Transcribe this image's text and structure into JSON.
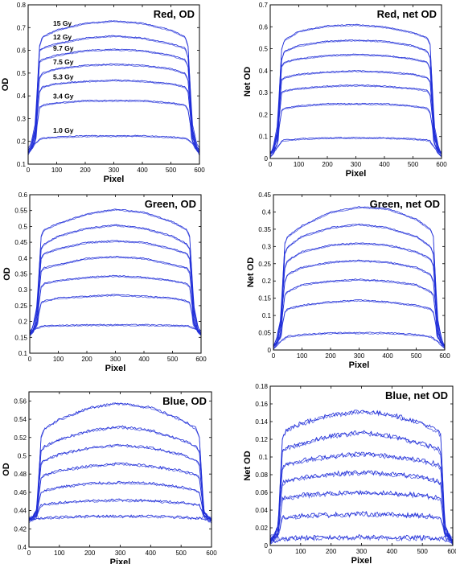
{
  "chart_data": [
    {
      "type": "line",
      "title": "Red, OD",
      "xlabel": "Pixel",
      "ylabel": "OD",
      "xlim": [
        0,
        600
      ],
      "ylim": [
        0.1,
        0.8
      ],
      "xticks": [
        0,
        100,
        200,
        300,
        400,
        500,
        600
      ],
      "yticks": [
        0.1,
        0.2,
        0.3,
        0.4,
        0.5,
        0.6,
        0.7,
        0.8
      ],
      "grid": false,
      "line_color": "#1f2dd8",
      "noise": 0.002,
      "dose_labels": [
        "15 Gy",
        "12 Gy",
        "9.7 Gy",
        "7.5 Gy",
        "5.3 Gy",
        "3.4 Gy",
        "1.0 Gy"
      ],
      "tail_values": [
        0.14,
        0.15,
        0.16,
        0.17,
        0.18,
        0.19,
        0.2
      ],
      "x": [
        0,
        10,
        25,
        40,
        50,
        100,
        200,
        300,
        400,
        500,
        550,
        560,
        575,
        590,
        600
      ],
      "series": [
        {
          "values": [
            0.17,
            0.19,
            0.28,
            0.62,
            0.66,
            0.69,
            0.72,
            0.73,
            0.72,
            0.69,
            0.66,
            0.62,
            0.28,
            0.19,
            0.17
          ]
        },
        {
          "values": [
            0.16,
            0.18,
            0.26,
            0.6,
            0.61,
            0.63,
            0.655,
            0.665,
            0.655,
            0.63,
            0.61,
            0.57,
            0.26,
            0.18,
            0.16
          ]
        },
        {
          "values": [
            0.16,
            0.18,
            0.25,
            0.55,
            0.56,
            0.58,
            0.6,
            0.605,
            0.6,
            0.58,
            0.56,
            0.53,
            0.25,
            0.18,
            0.16
          ]
        },
        {
          "values": [
            0.15,
            0.17,
            0.24,
            0.48,
            0.5,
            0.52,
            0.535,
            0.54,
            0.535,
            0.52,
            0.5,
            0.47,
            0.24,
            0.17,
            0.15
          ]
        },
        {
          "values": [
            0.15,
            0.17,
            0.23,
            0.42,
            0.44,
            0.455,
            0.465,
            0.47,
            0.465,
            0.455,
            0.44,
            0.42,
            0.23,
            0.17,
            0.15
          ]
        },
        {
          "values": [
            0.15,
            0.16,
            0.22,
            0.35,
            0.36,
            0.37,
            0.38,
            0.38,
            0.38,
            0.37,
            0.36,
            0.34,
            0.22,
            0.16,
            0.15
          ]
        },
        {
          "values": [
            0.14,
            0.16,
            0.19,
            0.21,
            0.215,
            0.22,
            0.225,
            0.225,
            0.225,
            0.22,
            0.215,
            0.21,
            0.19,
            0.16,
            0.14
          ]
        }
      ]
    },
    {
      "type": "line",
      "title": "Red, net OD",
      "xlabel": "Pixel",
      "ylabel": "Net OD",
      "xlim": [
        0,
        600
      ],
      "ylim": [
        0,
        0.7
      ],
      "xticks": [
        0,
        100,
        200,
        300,
        400,
        500,
        600
      ],
      "yticks": [
        0,
        0.1,
        0.2,
        0.3,
        0.4,
        0.5,
        0.6,
        0.7
      ],
      "grid": false,
      "line_color": "#1f2dd8",
      "noise": 0.002,
      "dose_labels": [],
      "tail_values": [
        0.0,
        0.01,
        0.02,
        0.03,
        0.04,
        0.05,
        0.06
      ],
      "x": [
        0,
        10,
        25,
        40,
        50,
        100,
        200,
        300,
        400,
        500,
        550,
        560,
        575,
        590,
        600
      ],
      "series": [
        {
          "values": [
            0.02,
            0.05,
            0.15,
            0.5,
            0.54,
            0.58,
            0.605,
            0.61,
            0.6,
            0.575,
            0.55,
            0.52,
            0.15,
            0.05,
            0.02
          ]
        },
        {
          "values": [
            0.02,
            0.04,
            0.13,
            0.45,
            0.49,
            0.515,
            0.535,
            0.54,
            0.535,
            0.515,
            0.49,
            0.46,
            0.13,
            0.04,
            0.02
          ]
        },
        {
          "values": [
            0.02,
            0.04,
            0.12,
            0.42,
            0.44,
            0.455,
            0.47,
            0.475,
            0.47,
            0.455,
            0.44,
            0.41,
            0.12,
            0.04,
            0.02
          ]
        },
        {
          "values": [
            0.02,
            0.04,
            0.11,
            0.36,
            0.37,
            0.385,
            0.395,
            0.4,
            0.395,
            0.385,
            0.37,
            0.35,
            0.11,
            0.04,
            0.02
          ]
        },
        {
          "values": [
            0.02,
            0.04,
            0.1,
            0.3,
            0.31,
            0.32,
            0.33,
            0.335,
            0.33,
            0.32,
            0.31,
            0.29,
            0.1,
            0.04,
            0.02
          ]
        },
        {
          "values": [
            0.02,
            0.03,
            0.09,
            0.22,
            0.23,
            0.24,
            0.25,
            0.25,
            0.25,
            0.24,
            0.23,
            0.21,
            0.09,
            0.03,
            0.02
          ]
        },
        {
          "values": [
            0.01,
            0.02,
            0.05,
            0.08,
            0.085,
            0.09,
            0.095,
            0.095,
            0.095,
            0.09,
            0.085,
            0.08,
            0.05,
            0.02,
            0.01
          ]
        }
      ]
    },
    {
      "type": "line",
      "title": "Green, OD",
      "xlabel": "Pixel",
      "ylabel": "OD",
      "xlim": [
        0,
        600
      ],
      "ylim": [
        0.1,
        0.6
      ],
      "xticks": [
        0,
        100,
        200,
        300,
        400,
        500,
        600
      ],
      "yticks": [
        0.1,
        0.15,
        0.2,
        0.25,
        0.3,
        0.35,
        0.4,
        0.45,
        0.5,
        0.55,
        0.6
      ],
      "grid": false,
      "line_color": "#1f2dd8",
      "noise": 0.0015,
      "dose_labels": [],
      "tail_values": [
        0.15,
        0.155,
        0.16,
        0.165,
        0.17,
        0.175,
        0.18
      ],
      "x": [
        0,
        10,
        25,
        40,
        50,
        100,
        200,
        300,
        400,
        500,
        550,
        560,
        575,
        590,
        600
      ],
      "series": [
        {
          "values": [
            0.17,
            0.18,
            0.25,
            0.47,
            0.49,
            0.51,
            0.54,
            0.555,
            0.545,
            0.515,
            0.49,
            0.47,
            0.25,
            0.18,
            0.17
          ]
        },
        {
          "values": [
            0.16,
            0.18,
            0.24,
            0.43,
            0.445,
            0.47,
            0.495,
            0.505,
            0.495,
            0.47,
            0.445,
            0.43,
            0.24,
            0.18,
            0.16
          ]
        },
        {
          "values": [
            0.16,
            0.18,
            0.23,
            0.4,
            0.415,
            0.43,
            0.45,
            0.455,
            0.45,
            0.43,
            0.415,
            0.4,
            0.23,
            0.18,
            0.16
          ]
        },
        {
          "values": [
            0.16,
            0.17,
            0.22,
            0.36,
            0.37,
            0.38,
            0.4,
            0.405,
            0.4,
            0.38,
            0.37,
            0.355,
            0.22,
            0.17,
            0.16
          ]
        },
        {
          "values": [
            0.16,
            0.17,
            0.21,
            0.31,
            0.32,
            0.33,
            0.34,
            0.345,
            0.34,
            0.33,
            0.32,
            0.31,
            0.21,
            0.17,
            0.16
          ]
        },
        {
          "values": [
            0.16,
            0.17,
            0.2,
            0.26,
            0.265,
            0.275,
            0.28,
            0.285,
            0.28,
            0.275,
            0.265,
            0.26,
            0.2,
            0.17,
            0.16
          ]
        },
        {
          "values": [
            0.165,
            0.17,
            0.18,
            0.185,
            0.187,
            0.188,
            0.19,
            0.19,
            0.19,
            0.188,
            0.187,
            0.185,
            0.18,
            0.17,
            0.165
          ]
        }
      ]
    },
    {
      "type": "line",
      "title": "Green, net OD",
      "xlabel": "Pixel",
      "ylabel": "Net OD",
      "xlim": [
        0,
        600
      ],
      "ylim": [
        0,
        0.45
      ],
      "xticks": [
        0,
        100,
        200,
        300,
        400,
        500,
        600
      ],
      "yticks": [
        0,
        0.05,
        0.1,
        0.15,
        0.2,
        0.25,
        0.3,
        0.35,
        0.4,
        0.45
      ],
      "grid": false,
      "line_color": "#1f2dd8",
      "noise": 0.0015,
      "dose_labels": [],
      "tail_values": [
        0.0,
        0.005,
        0.01,
        0.015,
        0.02,
        0.025,
        0.03
      ],
      "x": [
        0,
        10,
        25,
        40,
        50,
        100,
        200,
        300,
        400,
        500,
        550,
        560,
        575,
        590,
        600
      ],
      "series": [
        {
          "values": [
            0.01,
            0.03,
            0.09,
            0.31,
            0.33,
            0.36,
            0.4,
            0.415,
            0.41,
            0.38,
            0.35,
            0.33,
            0.09,
            0.03,
            0.01
          ]
        },
        {
          "values": [
            0.01,
            0.03,
            0.08,
            0.28,
            0.3,
            0.33,
            0.355,
            0.365,
            0.355,
            0.33,
            0.3,
            0.28,
            0.08,
            0.03,
            0.01
          ]
        },
        {
          "values": [
            0.01,
            0.03,
            0.08,
            0.24,
            0.26,
            0.285,
            0.305,
            0.31,
            0.305,
            0.285,
            0.265,
            0.245,
            0.08,
            0.03,
            0.01
          ]
        },
        {
          "values": [
            0.01,
            0.02,
            0.07,
            0.2,
            0.22,
            0.24,
            0.255,
            0.26,
            0.255,
            0.24,
            0.22,
            0.2,
            0.07,
            0.02,
            0.01
          ]
        },
        {
          "values": [
            0.01,
            0.02,
            0.06,
            0.16,
            0.17,
            0.19,
            0.2,
            0.205,
            0.2,
            0.19,
            0.17,
            0.16,
            0.06,
            0.02,
            0.01
          ]
        },
        {
          "values": [
            0.01,
            0.02,
            0.05,
            0.11,
            0.12,
            0.13,
            0.14,
            0.145,
            0.14,
            0.13,
            0.12,
            0.11,
            0.05,
            0.02,
            0.01
          ]
        },
        {
          "values": [
            0.005,
            0.01,
            0.025,
            0.035,
            0.04,
            0.045,
            0.05,
            0.05,
            0.05,
            0.045,
            0.04,
            0.035,
            0.025,
            0.01,
            0.005
          ]
        }
      ]
    },
    {
      "type": "line",
      "title": "Blue, OD",
      "xlabel": "Pixel",
      "ylabel": "OD",
      "xlim": [
        0,
        600
      ],
      "ylim": [
        0.4,
        0.57
      ],
      "xticks": [
        0,
        100,
        200,
        300,
        400,
        500,
        600
      ],
      "yticks": [
        0.4,
        0.42,
        0.44,
        0.46,
        0.48,
        0.5,
        0.52,
        0.54,
        0.56
      ],
      "grid": false,
      "line_color": "#1f2dd8",
      "noise": 0.0012,
      "dose_labels": [],
      "tail_values": [
        0.426,
        0.428,
        0.43,
        0.432,
        0.434,
        0.436,
        0.438
      ],
      "x": [
        0,
        10,
        25,
        40,
        50,
        100,
        200,
        300,
        400,
        500,
        550,
        560,
        575,
        590,
        600
      ],
      "series": [
        {
          "values": [
            0.43,
            0.432,
            0.44,
            0.52,
            0.53,
            0.54,
            0.553,
            0.558,
            0.553,
            0.54,
            0.53,
            0.52,
            0.44,
            0.432,
            0.43
          ]
        },
        {
          "values": [
            0.43,
            0.432,
            0.44,
            0.505,
            0.51,
            0.518,
            0.528,
            0.532,
            0.528,
            0.518,
            0.51,
            0.505,
            0.44,
            0.432,
            0.43
          ]
        },
        {
          "values": [
            0.43,
            0.432,
            0.44,
            0.492,
            0.495,
            0.502,
            0.509,
            0.512,
            0.509,
            0.502,
            0.495,
            0.49,
            0.44,
            0.432,
            0.43
          ]
        },
        {
          "values": [
            0.43,
            0.432,
            0.438,
            0.476,
            0.479,
            0.484,
            0.489,
            0.492,
            0.489,
            0.484,
            0.479,
            0.476,
            0.438,
            0.432,
            0.43
          ]
        },
        {
          "values": [
            0.43,
            0.432,
            0.437,
            0.46,
            0.462,
            0.466,
            0.47,
            0.471,
            0.47,
            0.466,
            0.462,
            0.46,
            0.437,
            0.432,
            0.43
          ]
        },
        {
          "values": [
            0.43,
            0.431,
            0.435,
            0.446,
            0.447,
            0.449,
            0.451,
            0.452,
            0.451,
            0.449,
            0.447,
            0.446,
            0.435,
            0.431,
            0.43
          ]
        },
        {
          "values": [
            0.43,
            0.43,
            0.431,
            0.432,
            0.432,
            0.433,
            0.434,
            0.434,
            0.434,
            0.433,
            0.432,
            0.432,
            0.431,
            0.43,
            0.43
          ]
        }
      ]
    },
    {
      "type": "line",
      "title": "Blue, net OD",
      "xlabel": "Pixel",
      "ylabel": "Net OD",
      "xlim": [
        0,
        600
      ],
      "ylim": [
        0,
        0.18
      ],
      "xticks": [
        0,
        100,
        200,
        300,
        400,
        500,
        600
      ],
      "yticks": [
        0,
        0.02,
        0.04,
        0.06,
        0.08,
        0.1,
        0.12,
        0.14,
        0.16,
        0.18
      ],
      "grid": false,
      "line_color": "#1f2dd8",
      "noise": 0.0025,
      "dose_labels": [],
      "tail_values": [
        0.0,
        0.003,
        0.006,
        0.009,
        0.012,
        0.015,
        0.018
      ],
      "x": [
        0,
        10,
        25,
        40,
        50,
        100,
        200,
        300,
        400,
        500,
        550,
        560,
        575,
        590,
        600
      ],
      "series": [
        {
          "values": [
            0.005,
            0.01,
            0.02,
            0.12,
            0.13,
            0.138,
            0.148,
            0.152,
            0.148,
            0.138,
            0.13,
            0.125,
            0.02,
            0.01,
            0.005
          ]
        },
        {
          "values": [
            0.005,
            0.01,
            0.02,
            0.105,
            0.11,
            0.115,
            0.124,
            0.128,
            0.124,
            0.115,
            0.11,
            0.105,
            0.02,
            0.01,
            0.005
          ]
        },
        {
          "values": [
            0.005,
            0.01,
            0.02,
            0.088,
            0.092,
            0.096,
            0.101,
            0.104,
            0.101,
            0.096,
            0.092,
            0.088,
            0.02,
            0.01,
            0.005
          ]
        },
        {
          "values": [
            0.005,
            0.01,
            0.018,
            0.07,
            0.073,
            0.077,
            0.081,
            0.083,
            0.081,
            0.077,
            0.073,
            0.07,
            0.018,
            0.01,
            0.005
          ]
        },
        {
          "values": [
            0.005,
            0.008,
            0.015,
            0.052,
            0.054,
            0.057,
            0.059,
            0.06,
            0.059,
            0.057,
            0.054,
            0.052,
            0.015,
            0.008,
            0.005
          ]
        },
        {
          "values": [
            0.005,
            0.007,
            0.012,
            0.031,
            0.032,
            0.034,
            0.035,
            0.036,
            0.035,
            0.034,
            0.032,
            0.031,
            0.012,
            0.007,
            0.005
          ]
        },
        {
          "values": [
            0.004,
            0.005,
            0.006,
            0.008,
            0.008,
            0.009,
            0.009,
            0.01,
            0.009,
            0.009,
            0.008,
            0.008,
            0.006,
            0.005,
            0.004
          ]
        }
      ]
    }
  ]
}
